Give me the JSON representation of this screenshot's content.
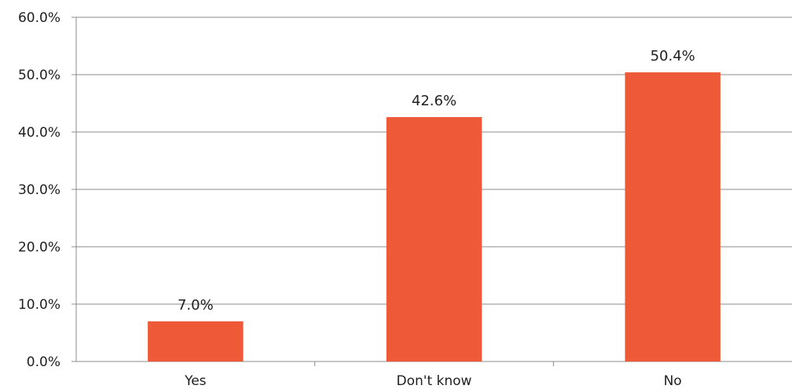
{
  "chart_data": {
    "type": "bar",
    "categories": [
      "Yes",
      "Don't know",
      "No"
    ],
    "values": [
      7.0,
      42.6,
      50.4
    ],
    "data_labels": [
      "7.0%",
      "42.6%",
      "50.4%"
    ],
    "yticks": [
      "0.0%",
      "10.0%",
      "20.0%",
      "30.0%",
      "40.0%",
      "50.0%",
      "60.0%"
    ],
    "ylim": [
      0,
      60
    ],
    "grid": true,
    "bar_color": "#EE5A38",
    "title": "",
    "xlabel": "",
    "ylabel": ""
  }
}
